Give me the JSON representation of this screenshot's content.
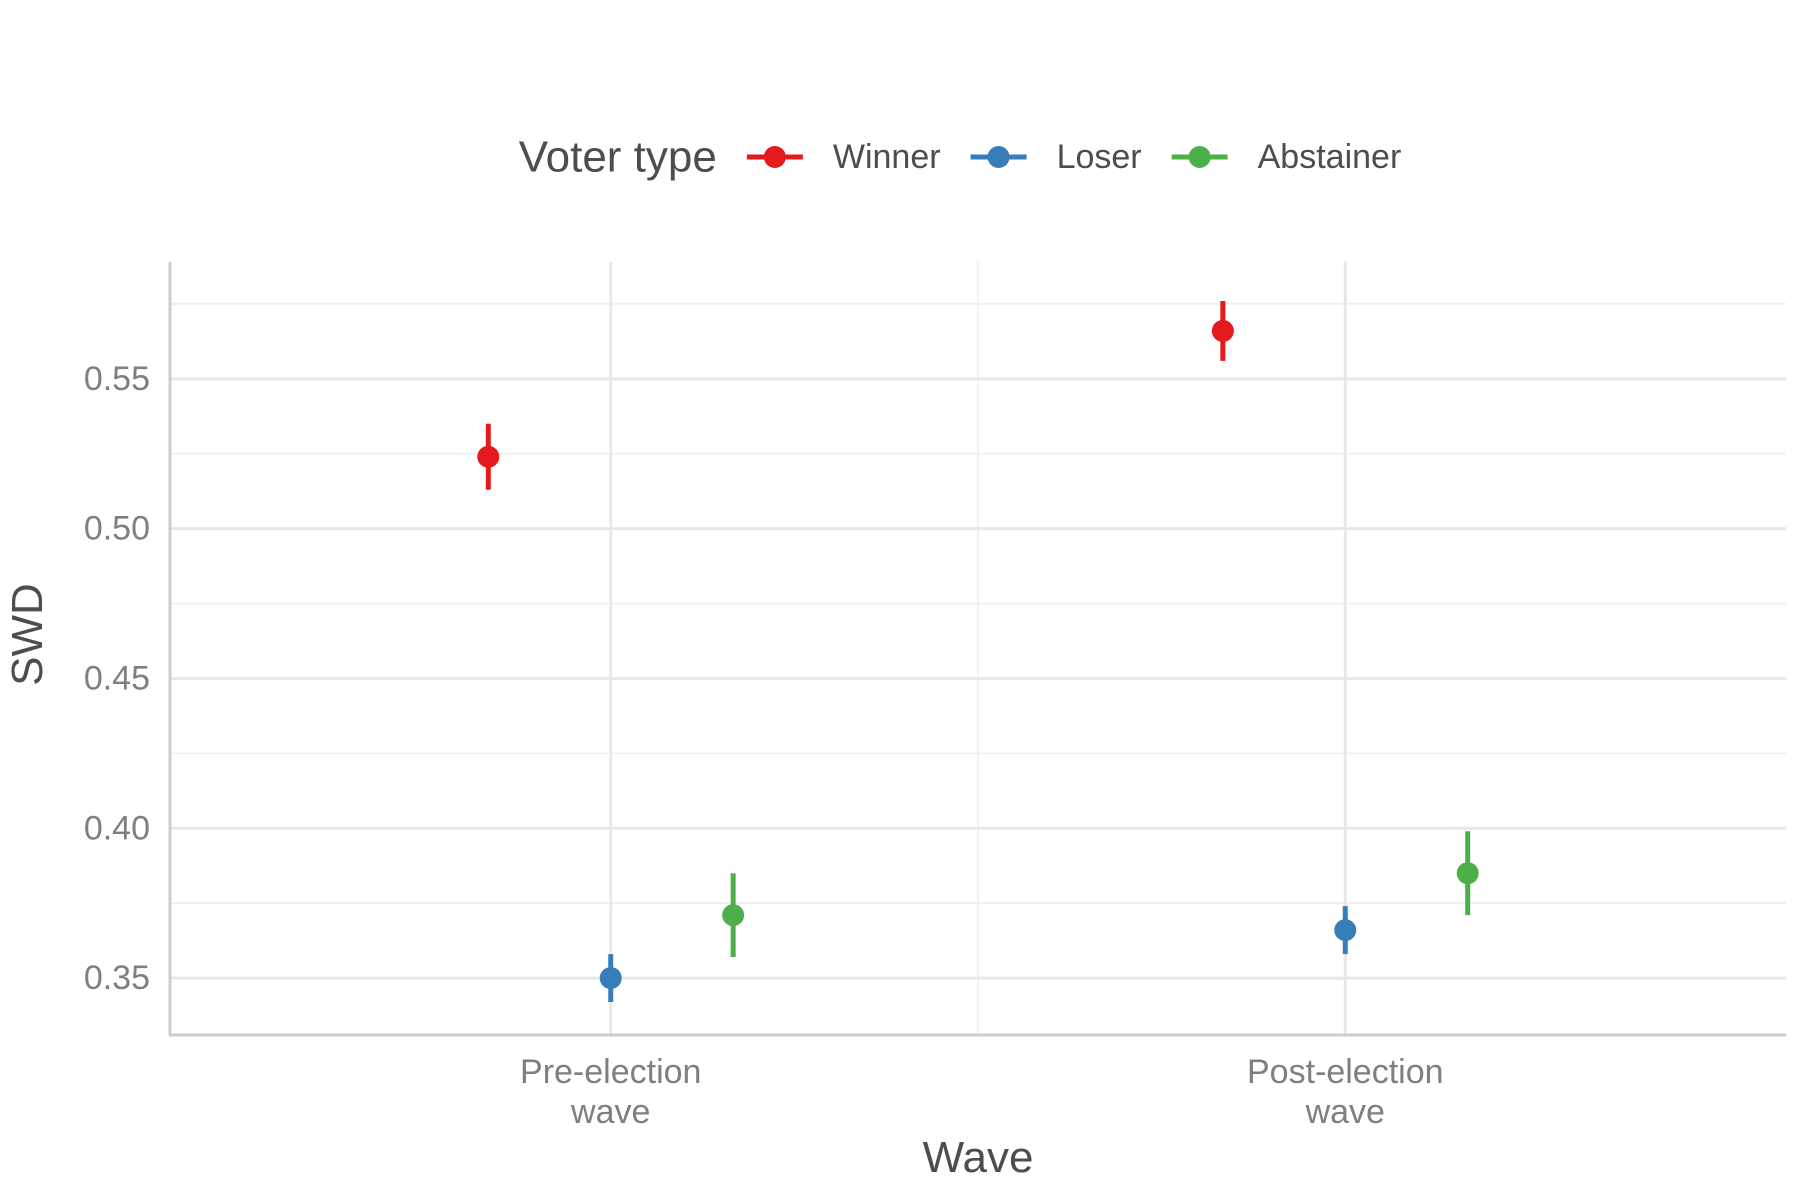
{
  "chart_data": {
    "type": "scatter",
    "subtype": "pointrange",
    "xlabel": "Wave",
    "ylabel": "SWD",
    "categories": [
      [
        "Pre-election",
        "wave"
      ],
      [
        "Post-election",
        "wave"
      ]
    ],
    "ylim": [
      0.331,
      0.589
    ],
    "yticks": [
      0.35,
      0.4,
      0.45,
      0.5,
      0.55
    ],
    "ytick_labels": [
      "0.35",
      "0.40",
      "0.45",
      "0.50",
      "0.55"
    ],
    "dodge_width": 0.5,
    "grid": true,
    "legend": {
      "title": "Voter type",
      "position": "top"
    },
    "series": [
      {
        "name": "Winner",
        "color": "#E41A1C",
        "values": [
          0.524,
          0.566
        ],
        "lower": [
          0.513,
          0.556
        ],
        "upper": [
          0.535,
          0.576
        ]
      },
      {
        "name": "Loser",
        "color": "#377EB8",
        "values": [
          0.35,
          0.366
        ],
        "lower": [
          0.342,
          0.358
        ],
        "upper": [
          0.358,
          0.374
        ]
      },
      {
        "name": "Abstainer",
        "color": "#4DAF4A",
        "values": [
          0.371,
          0.385
        ],
        "lower": [
          0.357,
          0.371
        ],
        "upper": [
          0.385,
          0.399
        ]
      }
    ]
  }
}
